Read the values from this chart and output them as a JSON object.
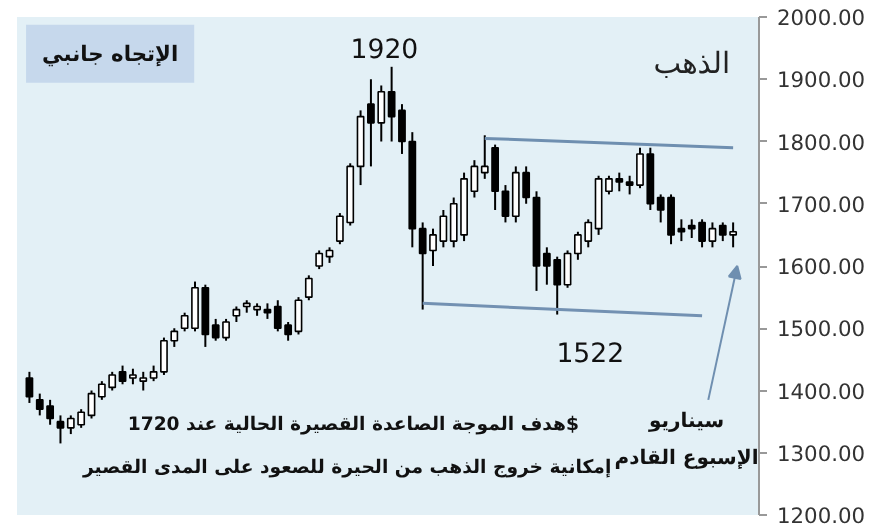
{
  "chart_data": {
    "type": "candlestick",
    "title": "الذهب",
    "categories": [
      null,
      null,
      null,
      null,
      null,
      null,
      null,
      null,
      null,
      null,
      null,
      null,
      null,
      null,
      null,
      null,
      null,
      null,
      null,
      null,
      null,
      null,
      null,
      null,
      null,
      null,
      null,
      null,
      null,
      null,
      null,
      null,
      null,
      null,
      null,
      null,
      null,
      null,
      null,
      null,
      null,
      null,
      null,
      null,
      null,
      null,
      null,
      null,
      null,
      null,
      null,
      null,
      null,
      null,
      null,
      null,
      null,
      null,
      null,
      null,
      null,
      null,
      null,
      null,
      null,
      null,
      null,
      null,
      null
    ],
    "ohlc": [
      [
        1420,
        1430,
        1380,
        1390
      ],
      [
        1385,
        1395,
        1360,
        1370
      ],
      [
        1375,
        1385,
        1345,
        1355
      ],
      [
        1350,
        1360,
        1315,
        1340
      ],
      [
        1340,
        1360,
        1330,
        1355
      ],
      [
        1345,
        1370,
        1340,
        1365
      ],
      [
        1360,
        1400,
        1355,
        1395
      ],
      [
        1390,
        1415,
        1385,
        1410
      ],
      [
        1405,
        1430,
        1400,
        1425
      ],
      [
        1430,
        1440,
        1410,
        1415
      ],
      [
        1420,
        1435,
        1410,
        1425
      ],
      [
        1415,
        1430,
        1400,
        1420
      ],
      [
        1420,
        1440,
        1415,
        1430
      ],
      [
        1430,
        1485,
        1425,
        1480
      ],
      [
        1480,
        1500,
        1470,
        1495
      ],
      [
        1500,
        1525,
        1495,
        1520
      ],
      [
        1500,
        1575,
        1495,
        1565
      ],
      [
        1565,
        1570,
        1470,
        1490
      ],
      [
        1505,
        1515,
        1480,
        1485
      ],
      [
        1485,
        1515,
        1480,
        1510
      ],
      [
        1520,
        1535,
        1510,
        1530
      ],
      [
        1535,
        1545,
        1525,
        1540
      ],
      [
        1530,
        1540,
        1520,
        1535
      ],
      [
        1530,
        1540,
        1515,
        1525
      ],
      [
        1535,
        1545,
        1495,
        1500
      ],
      [
        1505,
        1510,
        1480,
        1490
      ],
      [
        1495,
        1550,
        1490,
        1545
      ],
      [
        1550,
        1585,
        1545,
        1580
      ],
      [
        1600,
        1625,
        1595,
        1620
      ],
      [
        1615,
        1630,
        1605,
        1625
      ],
      [
        1640,
        1685,
        1635,
        1680
      ],
      [
        1670,
        1765,
        1665,
        1760
      ],
      [
        1760,
        1850,
        1730,
        1840
      ],
      [
        1860,
        1900,
        1760,
        1830
      ],
      [
        1830,
        1890,
        1800,
        1880
      ],
      [
        1880,
        1920,
        1800,
        1840
      ],
      [
        1850,
        1860,
        1780,
        1800
      ],
      [
        1800,
        1815,
        1630,
        1660
      ],
      [
        1660,
        1670,
        1530,
        1620
      ],
      [
        1625,
        1660,
        1600,
        1650
      ],
      [
        1640,
        1690,
        1630,
        1680
      ],
      [
        1640,
        1710,
        1630,
        1700
      ],
      [
        1650,
        1750,
        1640,
        1740
      ],
      [
        1720,
        1770,
        1710,
        1760
      ],
      [
        1750,
        1810,
        1740,
        1760
      ],
      [
        1790,
        1795,
        1690,
        1720
      ],
      [
        1720,
        1730,
        1670,
        1680
      ],
      [
        1680,
        1760,
        1670,
        1750
      ],
      [
        1750,
        1760,
        1700,
        1710
      ],
      [
        1710,
        1720,
        1560,
        1600
      ],
      [
        1620,
        1630,
        1570,
        1600
      ],
      [
        1610,
        1615,
        1522,
        1570
      ],
      [
        1570,
        1625,
        1565,
        1620
      ],
      [
        1620,
        1655,
        1610,
        1650
      ],
      [
        1640,
        1675,
        1630,
        1670
      ],
      [
        1660,
        1745,
        1650,
        1740
      ],
      [
        1720,
        1745,
        1715,
        1740
      ],
      [
        1740,
        1750,
        1720,
        1735
      ],
      [
        1735,
        1745,
        1715,
        1730
      ],
      [
        1730,
        1790,
        1725,
        1780
      ],
      [
        1780,
        1790,
        1690,
        1700
      ],
      [
        1710,
        1715,
        1670,
        1690
      ],
      [
        1710,
        1715,
        1635,
        1650
      ],
      [
        1660,
        1675,
        1640,
        1655
      ],
      [
        1665,
        1675,
        1645,
        1660
      ],
      [
        1670,
        1675,
        1630,
        1640
      ],
      [
        1640,
        1670,
        1630,
        1660
      ],
      [
        1665,
        1670,
        1640,
        1650
      ],
      [
        1650,
        1670,
        1630,
        1655
      ]
    ],
    "series": [
      {
        "type": "line",
        "values": [
          null,
          null,
          null,
          null,
          null,
          null,
          null,
          null,
          null,
          null,
          null,
          null,
          null,
          null,
          null,
          null,
          null,
          null,
          null,
          null,
          null,
          null,
          null,
          null,
          null,
          null,
          null,
          null,
          null,
          null,
          null,
          null,
          null,
          null,
          null,
          null,
          null,
          null,
          null,
          null,
          null,
          null,
          null,
          null,
          1805,
          null,
          null,
          null,
          null,
          null,
          null,
          null,
          null,
          null,
          null,
          null,
          null,
          null,
          null,
          null,
          null,
          null,
          null,
          null,
          null,
          null,
          null,
          null,
          1790
        ],
        "color": "#6f8fb0"
      },
      {
        "type": "line",
        "values": [
          null,
          null,
          null,
          null,
          null,
          null,
          null,
          null,
          null,
          null,
          null,
          null,
          null,
          null,
          null,
          null,
          null,
          null,
          null,
          null,
          null,
          null,
          null,
          null,
          null,
          null,
          null,
          null,
          null,
          null,
          null,
          null,
          null,
          null,
          null,
          null,
          null,
          null,
          1540,
          null,
          null,
          null,
          null,
          null,
          null,
          null,
          null,
          null,
          null,
          null,
          null,
          null,
          null,
          null,
          null,
          null,
          null,
          null,
          null,
          null,
          null,
          null,
          null,
          null,
          null,
          1520,
          null,
          null,
          null
        ],
        "color": "#7391b2"
      }
    ],
    "ylim": [
      1200,
      2000
    ],
    "yticks": [
      {
        "value": 1200,
        "label": "1200.00"
      },
      {
        "value": 1300,
        "label": "1300.00"
      },
      {
        "value": 1400,
        "label": "1400.00"
      },
      {
        "value": 1500,
        "label": "1500.00"
      },
      {
        "value": 1600,
        "label": "1600.00"
      },
      {
        "value": 1700,
        "label": "1700.00"
      },
      {
        "value": 1800,
        "label": "1800.00"
      },
      {
        "value": 1900,
        "label": "1900.00"
      },
      {
        "value": 2000,
        "label": "2000.00"
      }
    ],
    "tick_labels": "y",
    "grid": false,
    "annotations": [
      "1920",
      "1522",
      "الإتجاه جانبي",
      "هدف الموجة الصاعدة القصيرة الحالية عند 1720$",
      "إمكانية خروج الذهب من الحيرة للصعود على المدى القصير",
      "سيناريو",
      "الإسبوع القادم"
    ]
  }
}
